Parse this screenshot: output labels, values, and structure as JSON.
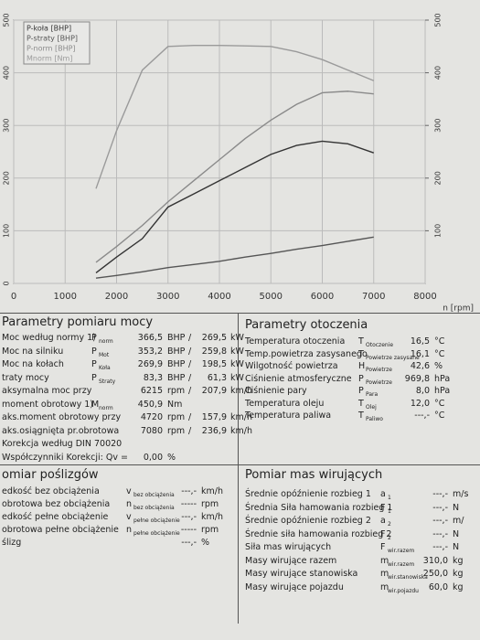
{
  "chart_data": {
    "type": "line",
    "x": [
      1600,
      2000,
      2500,
      3000,
      3500,
      4000,
      4500,
      5000,
      5500,
      6000,
      6500,
      7000
    ],
    "series": [
      {
        "name": "P-koła [BHP]",
        "color": "#333333",
        "values": [
          20,
          50,
          85,
          145,
          170,
          195,
          220,
          245,
          262,
          270,
          265,
          248
        ]
      },
      {
        "name": "P-straty [BHP]",
        "color": "#555555",
        "values": [
          10,
          15,
          22,
          30,
          36,
          42,
          50,
          57,
          65,
          72,
          80,
          88
        ]
      },
      {
        "name": "P-norm [BHP]",
        "color": "#8a8a8a",
        "values": [
          40,
          70,
          110,
          155,
          195,
          235,
          275,
          310,
          340,
          362,
          365,
          360
        ]
      },
      {
        "name": "Mnorm [Nm]",
        "color": "#9a9a9a",
        "values": [
          180,
          290,
          405,
          450,
          452,
          452,
          451,
          450,
          440,
          425,
          405,
          385
        ]
      }
    ],
    "xlabel": "n [rpm]",
    "xlim": [
      0,
      8000
    ],
    "xticks": [
      0,
      1000,
      2000,
      3000,
      4000,
      5000,
      6000,
      7000,
      8000
    ],
    "ylim": [
      0,
      500
    ],
    "yticks": [
      0,
      100,
      200,
      300,
      400,
      500
    ],
    "y2lim": [
      0,
      500
    ],
    "y2ticks": [
      100,
      200,
      300,
      400,
      500
    ],
    "grid": true,
    "legend": "top-left"
  },
  "power": {
    "title": "Parametry pomiaru mocy",
    "rows": [
      {
        "label": "Moc według normy 1)",
        "sym": "P",
        "sub": "norm",
        "value": "366,5",
        "unit": "BHP",
        "sep": "/",
        "value2": "269,5",
        "unit2": "kW"
      },
      {
        "label": "Moc na silniku",
        "sym": "P",
        "sub": "Mot",
        "value": "353,2",
        "unit": "BHP",
        "sep": "/",
        "value2": "259,8",
        "unit2": "kW"
      },
      {
        "label": "Moc na kołach",
        "sym": "P",
        "sub": "Koła",
        "value": "269,9",
        "unit": "BHP",
        "sep": "/",
        "value2": "198,5",
        "unit2": "kW"
      },
      {
        "label": "traty mocy",
        "sym": "P",
        "sub": "Straty",
        "value": "83,3",
        "unit": "BHP",
        "sep": "/",
        "value2": "61,3",
        "unit2": "kW"
      },
      {
        "label": "aksymalna moc przy",
        "value": "6215",
        "unit": "rpm",
        "sep": "/",
        "value2": "207,9",
        "unit2": "km/h"
      },
      {
        "label": "moment obrotowy 1)",
        "sym": "M",
        "sub": "norm",
        "value": "450,9",
        "unit": "Nm"
      },
      {
        "label": "aks.moment obrotowy przy",
        "value": "4720",
        "unit": "rpm",
        "sep": "/",
        "value2": "157,9",
        "unit2": "km/h"
      },
      {
        "label": "aks.osiągnięta pr.obrotowa",
        "value": "7080",
        "unit": "rpm",
        "sep": "/",
        "value2": "236,9",
        "unit2": "km/h"
      },
      {
        "label": "Korekcja według DIN 70020"
      },
      {
        "label": "Współczynniki Korekcji: Qv =",
        "value": "0,00",
        "unit": "%"
      }
    ]
  },
  "ambient": {
    "title": "Parametry otoczenia",
    "rows": [
      {
        "label": "Temperatura otoczenia",
        "sym": "T",
        "sub": "Otoczenie",
        "value": "16,5",
        "unit": "°C"
      },
      {
        "label": "Temp.powietrza zasysanego",
        "sym": "T",
        "sub": "Powietrze zasysane",
        "value": "16,1",
        "unit": "°C"
      },
      {
        "label": "Wilgotność powietrza",
        "sym": "H",
        "sub": "Powietrze",
        "value": "42,6",
        "unit": "%"
      },
      {
        "label": "Ciśnienie atmosferyczne",
        "sym": "P",
        "sub": "Powietrze",
        "value": "969,8",
        "unit": "hPa"
      },
      {
        "label": "Ciśnienie pary",
        "sym": "P",
        "sub": "Para",
        "value": "8,0",
        "unit": "hPa"
      },
      {
        "label": "Temperatura oleju",
        "sym": "T",
        "sub": "Olej",
        "value": "12,0",
        "unit": "°C"
      },
      {
        "label": "Temperatura paliwa",
        "sym": "T",
        "sub": "Paliwo",
        "value": "---,-",
        "unit": "°C"
      }
    ]
  },
  "slip": {
    "title": "omiar poślizgów",
    "rows": [
      {
        "label": "edkość bez obciążenia",
        "sym": "v",
        "sub": "bez obciążenia",
        "value": "---,-",
        "unit": "km/h"
      },
      {
        "label": "obrotowa bez obciążenia",
        "sym": "n",
        "sub": "bez obciążenia",
        "value": "-----",
        "unit": "rpm"
      },
      {
        "label": "edkość pełne obciążenie",
        "sym": "v",
        "sub": "pełne obciążenie",
        "value": "---,-",
        "unit": "km/h"
      },
      {
        "label": "obrotowa pełne obciążenie",
        "sym": "n",
        "sub": "pełne obciążenie",
        "value": "-----",
        "unit": "rpm"
      },
      {
        "label": "ślizg",
        "value": "---,-",
        "unit": "%"
      }
    ]
  },
  "mass": {
    "title": "Pomiar mas wirujących",
    "rows": [
      {
        "label": "Średnie opóźnienie rozbieg 1",
        "sym": "a",
        "sub": "1",
        "value": "---,-",
        "unit": "m/s"
      },
      {
        "label": "Średnia Siła hamowania rozbieg 1",
        "sym": "F",
        "sub": "1",
        "value": "---,-",
        "unit": "N"
      },
      {
        "label": "Średnie opóźnienie rozbieg 2",
        "sym": "a",
        "sub": "2",
        "value": "---,-",
        "unit": "m/"
      },
      {
        "label": "Średnie siła hamowania rozbieg 2",
        "sym": "F",
        "sub": "2",
        "value": "---,-",
        "unit": "N"
      },
      {
        "label": "Siła mas wirujących",
        "sym": "F",
        "sub": "wir.razem",
        "value": "---,-",
        "unit": "N"
      },
      {
        "label": "Masy wirujące razem",
        "sym": "m",
        "sub": "wir.razem",
        "value": "310,0",
        "unit": "kg"
      },
      {
        "label": "Masy wirujące stanowiska",
        "sym": "m",
        "sub": "wir.stanowiska",
        "value": "250,0",
        "unit": "kg"
      },
      {
        "label": "Masy wirujące pojazdu",
        "sym": "m",
        "sub": "wir.pojazdu",
        "value": "60,0",
        "unit": "kg"
      }
    ]
  }
}
